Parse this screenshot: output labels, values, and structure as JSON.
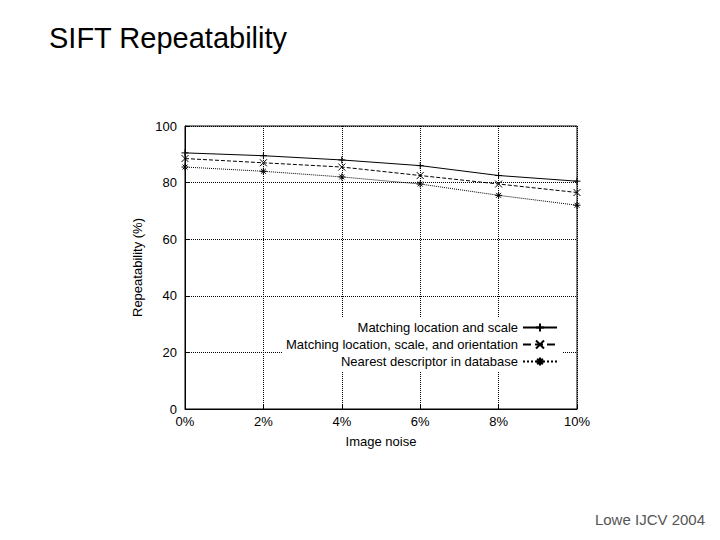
{
  "chart_data": {
    "type": "line",
    "title": "SIFT Repeatability",
    "annotation": "Lowe IJCV 2004",
    "x_label": "Image noise",
    "y_label": "Repeatability (%)",
    "x": [
      0,
      2,
      4,
      6,
      8,
      10
    ],
    "series": [
      {
        "name": "Matching location and scale",
        "color": "#000000",
        "line_style": "solid",
        "marker": "plus",
        "values": [
          90.5,
          89.5,
          88,
          86,
          82.5,
          80.5
        ]
      },
      {
        "name": "Matching location, scale, and orientation",
        "color": "#000000",
        "line_style": "dashed",
        "marker": "cross",
        "values": [
          88.5,
          87,
          85.5,
          82.5,
          79.5,
          76.5
        ]
      },
      {
        "name": "Nearest descriptor in database",
        "color": "#000000",
        "line_style": "dotted",
        "marker": "star",
        "values": [
          85.5,
          84,
          82,
          79.5,
          75.5,
          72
        ]
      }
    ],
    "xlim": [
      0,
      10
    ],
    "xticks": [
      {
        "value": 0,
        "label": "0%"
      },
      {
        "value": 2,
        "label": "2%"
      },
      {
        "value": 4,
        "label": "4%"
      },
      {
        "value": 6,
        "label": "6%"
      },
      {
        "value": 8,
        "label": "8%"
      },
      {
        "value": 10,
        "label": "10%"
      }
    ],
    "ylim": [
      0,
      100
    ],
    "yticks": [
      0,
      20,
      40,
      60,
      80,
      100
    ],
    "grid": true,
    "legend": "lower right"
  }
}
